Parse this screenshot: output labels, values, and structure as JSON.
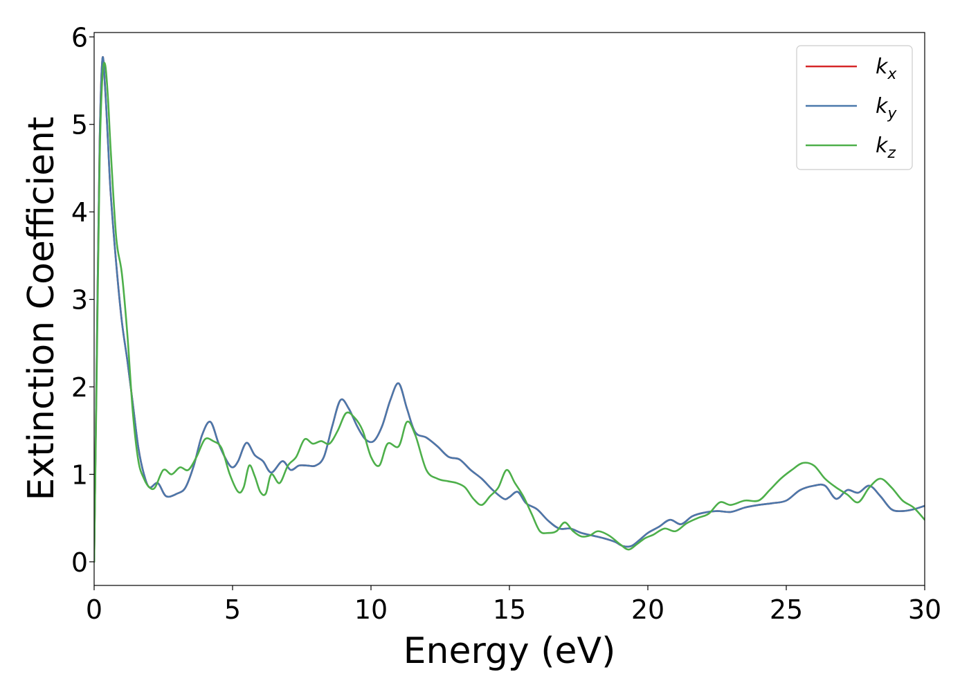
{
  "chart_data": {
    "type": "line",
    "title": "",
    "xlabel": "Energy (eV)",
    "ylabel": "Extinction Coefficient",
    "xlim": [
      0,
      30
    ],
    "ylim": [
      -0.27,
      6.05
    ],
    "xticks": [
      0,
      5,
      10,
      15,
      20,
      25,
      30
    ],
    "yticks": [
      0,
      1,
      2,
      3,
      4,
      5,
      6
    ],
    "xtick_labels": [
      "0",
      "5",
      "10",
      "15",
      "20",
      "25",
      "30"
    ],
    "ytick_labels": [
      "0",
      "1",
      "2",
      "3",
      "4",
      "5",
      "6"
    ],
    "grid": false,
    "legend_position": "top-right",
    "series": [
      {
        "name": "k_x",
        "label_main": "k",
        "label_sub": "x",
        "color": "#d62728",
        "x": [
          0.0,
          0.1,
          0.2,
          0.3,
          0.4,
          0.5,
          0.6,
          0.8,
          1.0,
          1.2,
          1.4,
          1.6,
          1.8,
          2.0,
          2.3,
          2.6,
          3.0,
          3.3,
          3.6,
          3.9,
          4.2,
          4.5,
          4.8,
          5.0,
          5.2,
          5.5,
          5.8,
          6.1,
          6.4,
          6.8,
          7.1,
          7.4,
          7.7,
          8.0,
          8.3,
          8.6,
          8.9,
          9.2,
          9.5,
          9.8,
          10.1,
          10.4,
          10.7,
          11.0,
          11.3,
          11.6,
          12.0,
          12.4,
          12.8,
          13.2,
          13.6,
          14.0,
          14.4,
          14.8,
          15.0,
          15.3,
          15.6,
          16.0,
          16.4,
          16.8,
          17.2,
          17.6,
          18.0,
          18.4,
          18.8,
          19.1,
          19.4,
          19.7,
          20.0,
          20.4,
          20.8,
          21.2,
          21.6,
          22.0,
          22.5,
          23.0,
          23.5,
          24.0,
          24.5,
          25.0,
          25.5,
          26.0,
          26.4,
          26.8,
          27.2,
          27.6,
          28.0,
          28.4,
          28.8,
          29.2,
          29.6,
          30.0
        ],
        "y": [
          0.0,
          2.5,
          4.8,
          5.75,
          5.4,
          4.8,
          4.2,
          3.4,
          2.75,
          2.3,
          1.8,
          1.3,
          1.0,
          0.85,
          0.9,
          0.75,
          0.78,
          0.85,
          1.1,
          1.45,
          1.6,
          1.35,
          1.15,
          1.08,
          1.15,
          1.36,
          1.22,
          1.15,
          1.02,
          1.15,
          1.05,
          1.1,
          1.1,
          1.1,
          1.2,
          1.55,
          1.85,
          1.75,
          1.55,
          1.4,
          1.38,
          1.55,
          1.85,
          2.04,
          1.75,
          1.48,
          1.42,
          1.32,
          1.2,
          1.17,
          1.05,
          0.95,
          0.82,
          0.72,
          0.74,
          0.8,
          0.67,
          0.6,
          0.47,
          0.38,
          0.38,
          0.33,
          0.3,
          0.27,
          0.23,
          0.18,
          0.18,
          0.25,
          0.33,
          0.4,
          0.48,
          0.43,
          0.52,
          0.56,
          0.58,
          0.57,
          0.62,
          0.65,
          0.67,
          0.7,
          0.82,
          0.87,
          0.87,
          0.72,
          0.82,
          0.79,
          0.87,
          0.75,
          0.6,
          0.58,
          0.6,
          0.64
        ]
      },
      {
        "name": "k_y",
        "label_main": "k",
        "label_sub": "y",
        "color": "#4a78ab",
        "x": [
          0.0,
          0.1,
          0.2,
          0.3,
          0.4,
          0.5,
          0.6,
          0.8,
          1.0,
          1.2,
          1.4,
          1.6,
          1.8,
          2.0,
          2.3,
          2.6,
          3.0,
          3.3,
          3.6,
          3.9,
          4.2,
          4.5,
          4.8,
          5.0,
          5.2,
          5.5,
          5.8,
          6.1,
          6.4,
          6.8,
          7.1,
          7.4,
          7.7,
          8.0,
          8.3,
          8.6,
          8.9,
          9.2,
          9.5,
          9.8,
          10.1,
          10.4,
          10.7,
          11.0,
          11.3,
          11.6,
          12.0,
          12.4,
          12.8,
          13.2,
          13.6,
          14.0,
          14.4,
          14.8,
          15.0,
          15.3,
          15.6,
          16.0,
          16.4,
          16.8,
          17.2,
          17.6,
          18.0,
          18.4,
          18.8,
          19.1,
          19.4,
          19.7,
          20.0,
          20.4,
          20.8,
          21.2,
          21.6,
          22.0,
          22.5,
          23.0,
          23.5,
          24.0,
          24.5,
          25.0,
          25.5,
          26.0,
          26.4,
          26.8,
          27.2,
          27.6,
          28.0,
          28.4,
          28.8,
          29.2,
          29.6,
          30.0
        ],
        "y": [
          0.0,
          2.5,
          4.8,
          5.75,
          5.4,
          4.8,
          4.2,
          3.4,
          2.75,
          2.3,
          1.8,
          1.3,
          1.0,
          0.85,
          0.9,
          0.75,
          0.78,
          0.85,
          1.1,
          1.45,
          1.6,
          1.35,
          1.15,
          1.08,
          1.15,
          1.36,
          1.22,
          1.15,
          1.02,
          1.15,
          1.05,
          1.1,
          1.1,
          1.1,
          1.2,
          1.55,
          1.85,
          1.75,
          1.55,
          1.4,
          1.38,
          1.55,
          1.85,
          2.04,
          1.75,
          1.48,
          1.42,
          1.32,
          1.2,
          1.17,
          1.05,
          0.95,
          0.82,
          0.72,
          0.74,
          0.8,
          0.67,
          0.6,
          0.47,
          0.38,
          0.38,
          0.33,
          0.3,
          0.27,
          0.23,
          0.18,
          0.18,
          0.25,
          0.33,
          0.4,
          0.48,
          0.43,
          0.52,
          0.56,
          0.58,
          0.57,
          0.62,
          0.65,
          0.67,
          0.7,
          0.82,
          0.87,
          0.87,
          0.72,
          0.82,
          0.79,
          0.87,
          0.75,
          0.6,
          0.58,
          0.6,
          0.64
        ]
      },
      {
        "name": "k_z",
        "label_main": "k",
        "label_sub": "z",
        "color": "#4daf4a",
        "x": [
          0.0,
          0.1,
          0.2,
          0.3,
          0.4,
          0.5,
          0.6,
          0.8,
          1.0,
          1.2,
          1.4,
          1.6,
          1.8,
          2.0,
          2.2,
          2.5,
          2.8,
          3.1,
          3.4,
          3.7,
          4.0,
          4.3,
          4.6,
          4.9,
          5.2,
          5.4,
          5.6,
          5.8,
          6.0,
          6.2,
          6.4,
          6.7,
          7.0,
          7.3,
          7.6,
          7.9,
          8.2,
          8.5,
          8.8,
          9.1,
          9.4,
          9.7,
          10.0,
          10.3,
          10.6,
          11.0,
          11.3,
          11.6,
          12.0,
          12.4,
          12.8,
          13.1,
          13.4,
          13.7,
          14.0,
          14.3,
          14.6,
          14.9,
          15.2,
          15.5,
          15.8,
          16.1,
          16.4,
          16.7,
          17.0,
          17.3,
          17.6,
          17.9,
          18.2,
          18.6,
          19.0,
          19.3,
          19.6,
          19.9,
          20.2,
          20.6,
          21.0,
          21.4,
          21.8,
          22.2,
          22.6,
          23.0,
          23.5,
          24.0,
          24.4,
          24.8,
          25.2,
          25.6,
          26.0,
          26.4,
          26.8,
          27.2,
          27.6,
          28.0,
          28.4,
          28.8,
          29.2,
          29.6,
          30.0
        ],
        "y": [
          0.0,
          2.3,
          4.6,
          5.55,
          5.68,
          5.3,
          4.7,
          3.7,
          3.3,
          2.6,
          1.7,
          1.15,
          0.95,
          0.85,
          0.85,
          1.05,
          1.0,
          1.08,
          1.05,
          1.2,
          1.4,
          1.38,
          1.3,
          1.0,
          0.8,
          0.85,
          1.1,
          0.98,
          0.8,
          0.78,
          1.0,
          0.9,
          1.1,
          1.2,
          1.4,
          1.35,
          1.38,
          1.35,
          1.5,
          1.7,
          1.65,
          1.5,
          1.2,
          1.1,
          1.35,
          1.32,
          1.6,
          1.45,
          1.05,
          0.95,
          0.92,
          0.9,
          0.85,
          0.72,
          0.65,
          0.75,
          0.85,
          1.05,
          0.9,
          0.75,
          0.55,
          0.35,
          0.33,
          0.35,
          0.45,
          0.35,
          0.29,
          0.3,
          0.35,
          0.3,
          0.2,
          0.14,
          0.2,
          0.27,
          0.31,
          0.38,
          0.35,
          0.44,
          0.5,
          0.55,
          0.68,
          0.65,
          0.7,
          0.7,
          0.82,
          0.95,
          1.05,
          1.13,
          1.1,
          0.95,
          0.85,
          0.77,
          0.68,
          0.85,
          0.95,
          0.85,
          0.7,
          0.62,
          0.48
        ]
      }
    ]
  }
}
